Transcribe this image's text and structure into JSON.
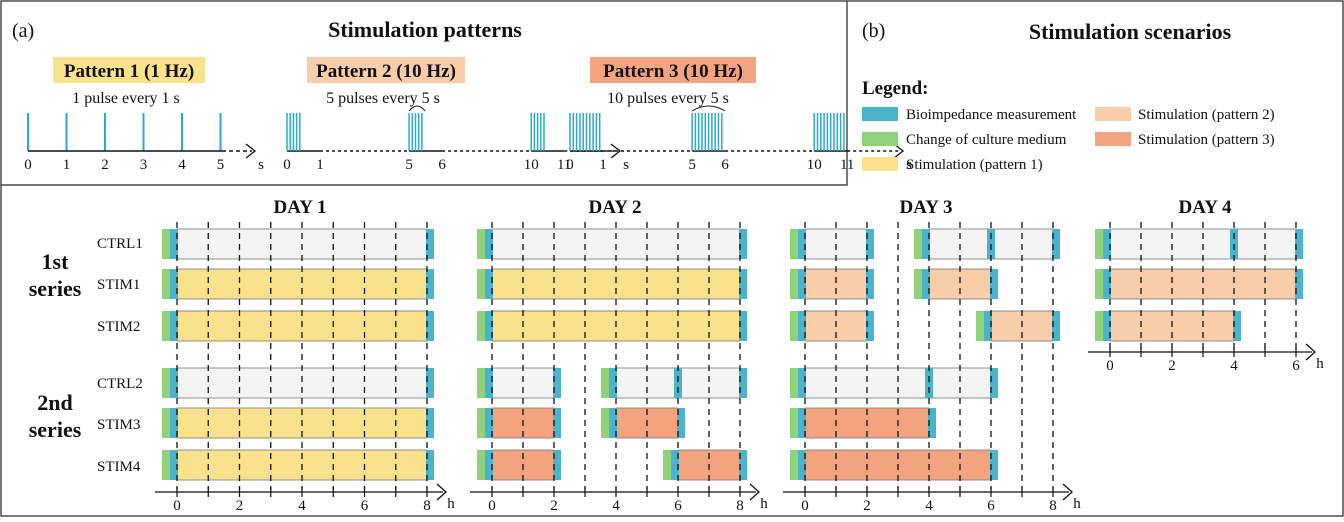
{
  "colors": {
    "bioimpedance": "#4BB3CC",
    "medium": "#8FD27A",
    "pattern1": "#FAE18B",
    "pattern2": "#F9CCAA",
    "pattern3": "#F4A37F",
    "control": "#F4F4F4",
    "pulse": "#2AA9D4"
  },
  "panel_a": {
    "label": "(a)",
    "title": "Stimulation patterns",
    "patterns": [
      {
        "title": "Pattern 1 (1 Hz)",
        "subtitle": "1 pulse every 1 s",
        "ticks": [
          "0",
          "1",
          "2",
          "3",
          "4",
          "5"
        ],
        "unit": "s",
        "color": "#FAE18B"
      },
      {
        "title": "Pattern 2 (10 Hz)",
        "subtitle": "5 pulses every 5 s",
        "ticks": [
          "0",
          "1",
          "5",
          "6",
          "10",
          "11"
        ],
        "unit": "s",
        "color": "#F9CCAA"
      },
      {
        "title": "Pattern 3 (10 Hz)",
        "subtitle": "10 pulses every 5 s",
        "ticks": [
          "0",
          "1",
          "5",
          "6",
          "10",
          "11"
        ],
        "unit": "s",
        "color": "#F4A37F"
      }
    ]
  },
  "panel_b": {
    "label": "(b)",
    "title": "Stimulation scenarios",
    "legend_title": "Legend:",
    "legend": [
      {
        "label": "Bioimpedance measurement",
        "color": "#4BB3CC"
      },
      {
        "label": "Change of culture medium",
        "color": "#8FD27A"
      },
      {
        "label": "Stimulation (pattern 1)",
        "color": "#FAE18B"
      },
      {
        "label": "Stimulation (pattern 2)",
        "color": "#F9CCAA"
      },
      {
        "label": "Stimulation (pattern 3)",
        "color": "#F4A37F"
      }
    ]
  },
  "series_labels": [
    "1st series",
    "2nd series"
  ],
  "rows": [
    "CTRL1",
    "STIM1",
    "STIM2",
    "CTRL2",
    "STIM3",
    "STIM4"
  ],
  "days": [
    {
      "title": "DAY 1",
      "ticks": [
        "0",
        "2",
        "4",
        "6",
        "8"
      ],
      "unit": "h"
    },
    {
      "title": "DAY 2",
      "ticks": [
        "0",
        "2",
        "4",
        "6",
        "8"
      ],
      "unit": "h"
    },
    {
      "title": "DAY 3",
      "ticks": [
        "0",
        "2",
        "4",
        "6",
        "8"
      ],
      "unit": "h"
    },
    {
      "title": "DAY 4",
      "ticks": [
        "0",
        "2",
        "4",
        "6"
      ],
      "unit": "h"
    }
  ],
  "schedule": {
    "day1": {
      "CTRL1": [
        {
          "start": 0,
          "end": 8,
          "type": "control"
        }
      ],
      "STIM1": [
        {
          "start": 0,
          "end": 8,
          "type": "pattern1"
        }
      ],
      "STIM2": [
        {
          "start": 0,
          "end": 8,
          "type": "pattern1"
        }
      ],
      "CTRL2": [
        {
          "start": 0,
          "end": 8,
          "type": "control"
        }
      ],
      "STIM3": [
        {
          "start": 0,
          "end": 8,
          "type": "pattern1"
        }
      ],
      "STIM4": [
        {
          "start": 0,
          "end": 8,
          "type": "pattern1"
        }
      ]
    },
    "day2": {
      "CTRL1": [
        {
          "start": 0,
          "end": 8,
          "type": "control"
        }
      ],
      "STIM1": [
        {
          "start": 0,
          "end": 8,
          "type": "pattern1"
        }
      ],
      "STIM2": [
        {
          "start": 0,
          "end": 8,
          "type": "pattern1"
        }
      ],
      "CTRL2": [
        {
          "start": 0,
          "end": 2,
          "type": "control"
        },
        {
          "start": 4,
          "end": 6,
          "type": "control"
        },
        {
          "start": 6,
          "end": 8,
          "type": "control"
        }
      ],
      "STIM3": [
        {
          "start": 0,
          "end": 2,
          "type": "pattern3"
        },
        {
          "start": 4,
          "end": 6,
          "type": "pattern3"
        }
      ],
      "STIM4": [
        {
          "start": 0,
          "end": 2,
          "type": "pattern3"
        },
        {
          "start": 6,
          "end": 8,
          "type": "pattern3"
        }
      ]
    },
    "day3": {
      "CTRL1": [
        {
          "start": 0,
          "end": 2,
          "type": "control"
        },
        {
          "start": 4,
          "end": 6,
          "type": "control"
        },
        {
          "start": 6,
          "end": 8,
          "type": "control"
        }
      ],
      "STIM1": [
        {
          "start": 0,
          "end": 2,
          "type": "pattern2"
        },
        {
          "start": 4,
          "end": 6,
          "type": "pattern2"
        }
      ],
      "STIM2": [
        {
          "start": 0,
          "end": 2,
          "type": "pattern2"
        },
        {
          "start": 6,
          "end": 8,
          "type": "pattern2"
        }
      ],
      "CTRL2": [
        {
          "start": 0,
          "end": 4,
          "type": "control"
        },
        {
          "start": 4,
          "end": 6,
          "type": "control"
        }
      ],
      "STIM3": [
        {
          "start": 0,
          "end": 4,
          "type": "pattern3"
        }
      ],
      "STIM4": [
        {
          "start": 0,
          "end": 6,
          "type": "pattern3"
        }
      ]
    },
    "day4": {
      "CTRL1": [
        {
          "start": 0,
          "end": 4,
          "type": "control"
        },
        {
          "start": 4,
          "end": 6,
          "type": "control"
        }
      ],
      "STIM1": [
        {
          "start": 0,
          "end": 6,
          "type": "pattern2"
        }
      ],
      "STIM2": [
        {
          "start": 0,
          "end": 4,
          "type": "pattern2"
        }
      ]
    }
  }
}
